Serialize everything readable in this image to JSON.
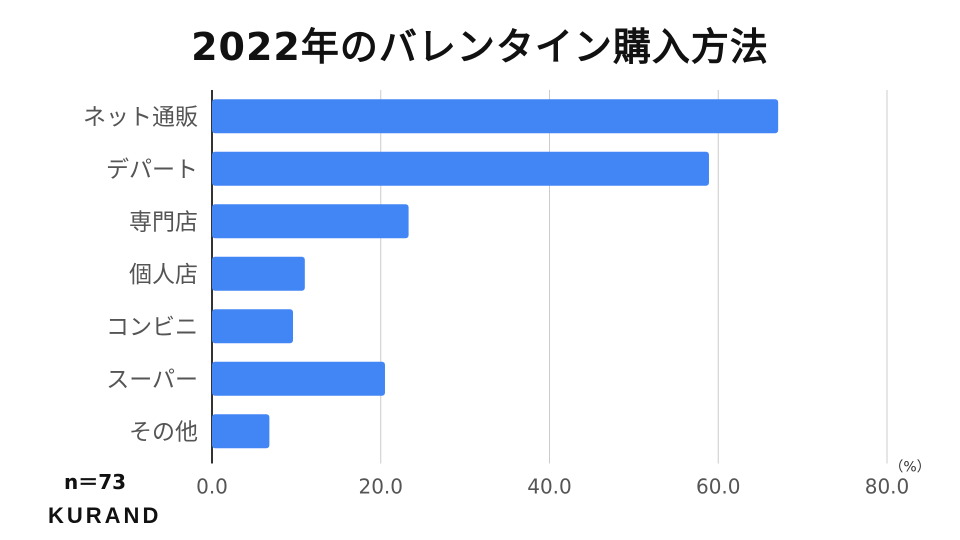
{
  "chart_data": {
    "type": "bar",
    "orientation": "horizontal",
    "title": "2022年のバレンタイン購入方法",
    "categories": [
      "ネット通販",
      "デパート",
      "専門店",
      "個人店",
      "コンビニ",
      "スーパー",
      "その他"
    ],
    "values": [
      67.1,
      58.9,
      23.3,
      11.0,
      9.6,
      20.5,
      6.8
    ],
    "xlim": [
      0,
      80
    ],
    "xticks": [
      "0.0",
      "20.0",
      "40.0",
      "60.0",
      "80.0"
    ],
    "xunit": "（%）",
    "grid": true,
    "bar_color": "#4285f4"
  },
  "note": "n＝73",
  "logo": "KURAND"
}
